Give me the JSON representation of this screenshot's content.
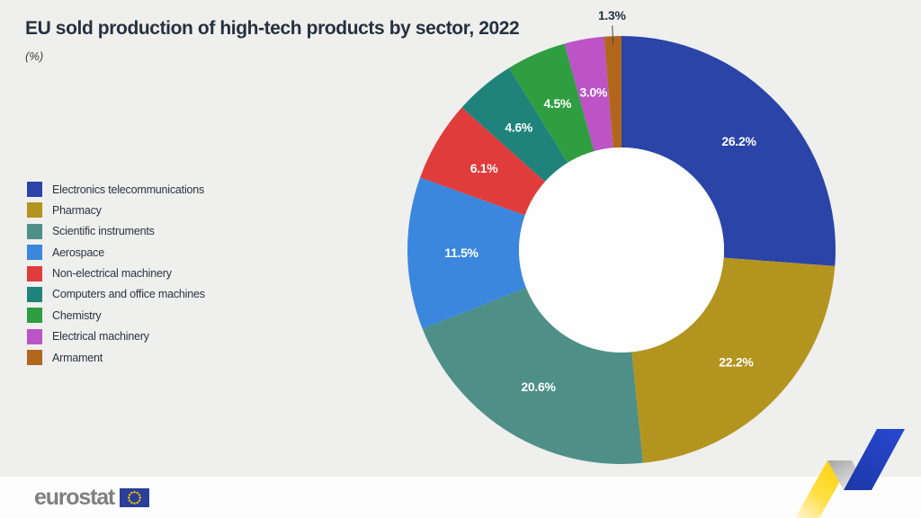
{
  "title": "EU sold production of high-tech products by sector, 2022",
  "subtitle": "(%)",
  "footer": {
    "brand": "eurostat"
  },
  "colors": {
    "background": "#efefee",
    "footer_background": "#fdfdfd",
    "title_text": "#25313f",
    "donut_hole": "#fefefe",
    "eu_flag_blue": "#2a3f97",
    "eu_flag_stars": "#ffcc00",
    "ribbon_yellow": "#ffd40f",
    "ribbon_gray": "#bdbdbd",
    "ribbon_blue": "#2343c0"
  },
  "chart_data": {
    "type": "pie",
    "subtype": "donut",
    "title": "EU sold production of high-tech products by sector, 2022",
    "unit": "%",
    "start_angle_deg": 0,
    "direction": "clockwise",
    "legend_position": "left",
    "donut_hole_ratio": 0.48,
    "slices": [
      {
        "label": "Electronics telecommunications",
        "value": 26.2,
        "display": "26.2%",
        "color": "#2a44a7"
      },
      {
        "label": "Pharmacy",
        "value": 22.2,
        "display": "22.2%",
        "color": "#b3941f"
      },
      {
        "label": "Scientific instruments",
        "value": 20.6,
        "display": "20.6%",
        "color": "#4e9087"
      },
      {
        "label": "Aerospace",
        "value": 11.5,
        "display": "11.5%",
        "color": "#3a87dd"
      },
      {
        "label": "Non-electrical machinery",
        "value": 6.1,
        "display": "6.1%",
        "color": "#e03c3c"
      },
      {
        "label": "Computers and office machines",
        "value": 4.6,
        "display": "4.6%",
        "color": "#1f837c"
      },
      {
        "label": "Chemistry",
        "value": 4.5,
        "display": "4.5%",
        "color": "#2f9e41"
      },
      {
        "label": "Electrical machinery",
        "value": 3.0,
        "display": "3.0%",
        "color": "#bc54c6"
      },
      {
        "label": "Armament",
        "value": 1.3,
        "display": "1.3%",
        "color": "#b2661c"
      }
    ]
  }
}
